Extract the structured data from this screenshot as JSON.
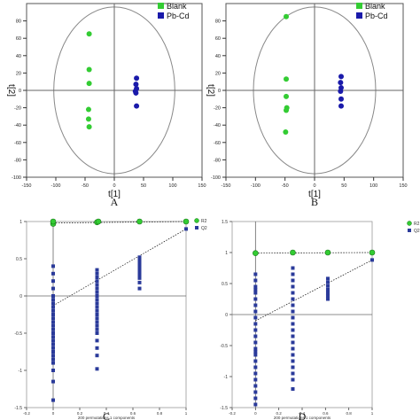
{
  "chart_data": [
    {
      "type": "scatter",
      "panel": "A",
      "xlabel": "t[1]",
      "ylabel": "t[2]",
      "xlim": [
        -150,
        150
      ],
      "ylim": [
        -100,
        100
      ],
      "xticks": [
        -150,
        -100,
        -50,
        0,
        50,
        100,
        150
      ],
      "yticks": [
        -100,
        -80,
        -60,
        -40,
        -20,
        0,
        20,
        40,
        60,
        80
      ],
      "confidence_ellipse": true,
      "legend_position": "top-right",
      "series": [
        {
          "name": "Blank",
          "color": "#33cc33",
          "x": [
            -43,
            -43,
            -43,
            -44,
            -44,
            -43
          ],
          "y": [
            65,
            24,
            8,
            -22,
            -33,
            -42
          ]
        },
        {
          "name": "Pb-Cd",
          "color": "#1a1aaa",
          "x": [
            38,
            37,
            38,
            36,
            37,
            38
          ],
          "y": [
            14,
            7,
            2,
            -1,
            -3,
            -18
          ]
        }
      ]
    },
    {
      "type": "scatter",
      "panel": "B",
      "xlabel": "t[1]",
      "ylabel": "t[2]",
      "xlim": [
        -150,
        150
      ],
      "ylim": [
        -100,
        100
      ],
      "xticks": [
        -150,
        -100,
        -50,
        0,
        50,
        100,
        150
      ],
      "yticks": [
        -100,
        -80,
        -60,
        -40,
        -20,
        0,
        20,
        40,
        60,
        80
      ],
      "confidence_ellipse": true,
      "legend_position": "top-right",
      "series": [
        {
          "name": "Blank",
          "color": "#33cc33",
          "x": [
            -48,
            -48,
            -48,
            -47,
            -48,
            -49
          ],
          "y": [
            85,
            13,
            -7,
            -20,
            -23,
            -48
          ]
        },
        {
          "name": "Pb-Cd",
          "color": "#1a1aaa",
          "x": [
            45,
            44,
            45,
            44,
            45,
            45
          ],
          "y": [
            16,
            9,
            3,
            -1,
            -10,
            -18
          ]
        }
      ]
    },
    {
      "type": "scatter",
      "panel": "C",
      "xlabel": "200 permutations 1 components",
      "xlim": [
        -0.2,
        1.0
      ],
      "ylim": [
        -1.5,
        1.0
      ],
      "xticks": [
        "-0.2",
        "0",
        "0.2",
        "0.4",
        "0.6",
        "0.8",
        "1"
      ],
      "yticks": [
        "-1.5",
        "-1",
        "-0.5",
        "0",
        "0.5",
        "1"
      ],
      "legend_position": "top-right",
      "series": [
        {
          "name": "R2",
          "color": "#33cc33",
          "x": [
            0,
            0,
            0.33,
            0.34,
            0.65,
            1.0
          ],
          "y": [
            0.97,
            1.0,
            0.99,
            1.0,
            1.0,
            1.0
          ]
        },
        {
          "name": "Q2",
          "color": "#2a3a9a",
          "x": [
            0,
            0,
            0,
            0,
            0,
            0,
            0,
            0,
            0,
            0,
            0,
            0,
            0,
            0,
            0,
            0,
            0,
            0,
            0,
            0,
            0,
            0,
            0,
            0,
            0,
            0,
            0.33,
            0.33,
            0.33,
            0.33,
            0.33,
            0.33,
            0.33,
            0.33,
            0.33,
            0.33,
            0.33,
            0.33,
            0.33,
            0.33,
            0.33,
            0.33,
            0.33,
            0.33,
            0.33,
            0.33,
            0.33,
            0.33,
            0.65,
            0.65,
            0.65,
            0.65,
            0.65,
            0.65,
            0.65,
            0.65,
            0.65,
            0.65,
            1.0
          ],
          "y": [
            0.4,
            0.3,
            0.2,
            0.1,
            0.0,
            -0.05,
            -0.1,
            -0.15,
            -0.2,
            -0.25,
            -0.3,
            -0.35,
            -0.4,
            -0.45,
            -0.5,
            -0.55,
            -0.6,
            -0.65,
            -0.7,
            -0.75,
            -0.8,
            -0.85,
            -0.9,
            -1.0,
            -1.15,
            -1.4,
            0.35,
            0.3,
            0.25,
            0.2,
            0.15,
            0.1,
            0.05,
            0.0,
            -0.05,
            -0.1,
            -0.15,
            -0.2,
            -0.25,
            -0.3,
            -0.35,
            -0.4,
            -0.45,
            -0.5,
            -0.6,
            -0.7,
            -0.8,
            -0.98,
            0.52,
            0.48,
            0.44,
            0.4,
            0.36,
            0.32,
            0.28,
            0.24,
            0.18,
            0.1,
            0.9
          ]
        },
        {
          "name": "R2 line",
          "style": "dotted",
          "x": [
            0,
            1.0
          ],
          "y": [
            0.98,
            1.0
          ]
        },
        {
          "name": "Q2 line",
          "style": "dotted",
          "x": [
            0,
            1.0
          ],
          "y": [
            -0.13,
            0.9
          ]
        }
      ]
    },
    {
      "type": "scatter",
      "panel": "D",
      "xlabel": "200 permutations 1 components",
      "xlim": [
        -0.2,
        1.0
      ],
      "ylim": [
        -1.5,
        1.5
      ],
      "xticks": [
        "-0.2",
        "0",
        "0.2",
        "0.4",
        "0.6",
        "0.8",
        "1"
      ],
      "yticks": [
        "-1.5",
        "-1",
        "-0.5",
        "0",
        "0.5",
        "1",
        "1.5"
      ],
      "legend_position": "top-right",
      "series": [
        {
          "name": "R2",
          "color": "#33cc33",
          "x": [
            0,
            0.32,
            0.62,
            1.0
          ],
          "y": [
            0.99,
            1.0,
            1.0,
            1.0
          ]
        },
        {
          "name": "Q2",
          "color": "#2a3a9a",
          "x": [
            0,
            0,
            0,
            0,
            0,
            0,
            0,
            0,
            0,
            0,
            0,
            0,
            0,
            0,
            0,
            0,
            0,
            0,
            0,
            0,
            0,
            0,
            0,
            0,
            0.32,
            0.32,
            0.32,
            0.32,
            0.32,
            0.32,
            0.32,
            0.32,
            0.32,
            0.32,
            0.32,
            0.32,
            0.32,
            0.32,
            0.32,
            0.32,
            0.32,
            0.32,
            0.32,
            0.32,
            0.62,
            0.62,
            0.62,
            0.62,
            0.62,
            0.62,
            0.62,
            1.0
          ],
          "y": [
            0.65,
            0.55,
            0.45,
            0.35,
            0.25,
            0.15,
            0.05,
            -0.05,
            -0.15,
            -0.25,
            -0.35,
            -0.45,
            -0.55,
            -0.65,
            -0.75,
            -0.85,
            -0.95,
            -1.05,
            -1.15,
            -1.25,
            -1.35,
            -1.45,
            0.4,
            -0.6,
            0.75,
            0.65,
            0.55,
            0.45,
            0.35,
            0.25,
            0.15,
            0.05,
            -0.05,
            -0.15,
            -0.25,
            -0.35,
            -0.45,
            -0.55,
            -0.65,
            -0.75,
            -0.85,
            -0.95,
            -1.05,
            -1.2,
            0.58,
            0.52,
            0.46,
            0.4,
            0.35,
            0.3,
            0.25,
            0.88
          ]
        },
        {
          "name": "R2 line",
          "style": "dotted",
          "x": [
            0,
            1.0
          ],
          "y": [
            0.99,
            1.0
          ]
        },
        {
          "name": "Q2 line",
          "style": "dotted",
          "x": [
            0,
            1.0
          ],
          "y": [
            -0.1,
            0.88
          ]
        }
      ]
    }
  ],
  "panel_labels": [
    "A",
    "B",
    "C",
    "D"
  ]
}
